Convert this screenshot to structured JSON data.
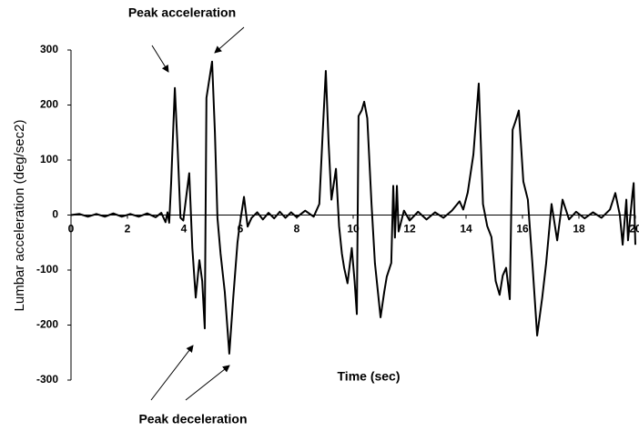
{
  "chart_data": {
    "type": "line",
    "x_label": "Time  (sec)",
    "y_label": "Lumbar acceleration (deg/sec2)",
    "annotations": [
      "Peak acceleration",
      "Peak deceleration"
    ],
    "x": [
      0,
      0.3,
      0.6,
      0.9,
      1.2,
      1.5,
      1.8,
      2.1,
      2.4,
      2.7,
      3.0,
      3.2,
      3.35,
      3.42,
      3.48,
      3.55,
      3.68,
      3.78,
      3.88,
      3.98,
      4.1,
      4.19,
      4.3,
      4.42,
      4.55,
      4.65,
      4.74,
      4.8,
      5.0,
      5.1,
      5.19,
      5.3,
      5.45,
      5.61,
      5.75,
      5.9,
      5.97,
      6.13,
      6.26,
      6.4,
      6.6,
      6.8,
      7.0,
      7.2,
      7.4,
      7.6,
      7.8,
      8.0,
      8.3,
      8.6,
      8.8,
      8.92,
      9.03,
      9.13,
      9.23,
      9.39,
      9.5,
      9.6,
      9.68,
      9.8,
      9.95,
      10.05,
      10.13,
      10.19,
      10.3,
      10.39,
      10.5,
      10.65,
      10.77,
      10.97,
      11.1,
      11.19,
      11.35,
      11.42,
      11.48,
      11.55,
      11.61,
      11.8,
      12.0,
      12.3,
      12.6,
      12.9,
      13.2,
      13.5,
      13.77,
      13.9,
      14.06,
      14.26,
      14.45,
      14.6,
      14.75,
      14.9,
      15.05,
      15.19,
      15.3,
      15.42,
      15.55,
      15.65,
      15.75,
      15.87,
      16.03,
      16.19,
      16.35,
      16.52,
      16.7,
      16.84,
      17.03,
      17.23,
      17.42,
      17.65,
      17.9,
      18.2,
      18.5,
      18.8,
      19.1,
      19.29,
      19.45,
      19.55,
      19.68,
      19.74,
      19.9,
      19.94,
      20.0
    ],
    "series": [
      {
        "color": "#000000",
        "values": [
          0,
          2,
          -3,
          2,
          -3,
          3,
          -3,
          2,
          -3,
          3,
          -4,
          4,
          -13,
          5,
          -14,
          60,
          231,
          120,
          -5,
          -10,
          40,
          76,
          -60,
          -150,
          -82,
          -120,
          -206,
          213,
          279,
          150,
          -5,
          -70,
          -140,
          -252,
          -150,
          -50,
          -21,
          33,
          -21,
          -5,
          5,
          -8,
          4,
          -6,
          6,
          -5,
          5,
          -4,
          8,
          -3,
          20,
          150,
          262,
          130,
          28,
          84,
          -20,
          -70,
          -96,
          -124,
          -60,
          -120,
          -180,
          180,
          190,
          206,
          176,
          20,
          -87,
          -186,
          -140,
          -112,
          -87,
          53,
          -41,
          53,
          -30,
          8,
          -10,
          6,
          -8,
          5,
          -5,
          8,
          25,
          10,
          41,
          110,
          239,
          20,
          -20,
          -40,
          -120,
          -145,
          -110,
          -96,
          -153,
          155,
          170,
          190,
          61,
          28,
          -87,
          -219,
          -150,
          -87,
          20,
          -46,
          28,
          -8,
          6,
          -6,
          5,
          -5,
          10,
          40,
          0,
          -54,
          28,
          -46,
          40,
          58,
          -54
        ]
      }
    ],
    "xlim": [
      0,
      20
    ],
    "xticks": [
      0,
      2,
      4,
      6,
      8,
      10,
      12,
      14,
      16,
      18,
      20
    ],
    "ylim": [
      -300,
      300
    ],
    "yticks": [
      300,
      200,
      100,
      0,
      -100,
      -200,
      -300
    ]
  }
}
